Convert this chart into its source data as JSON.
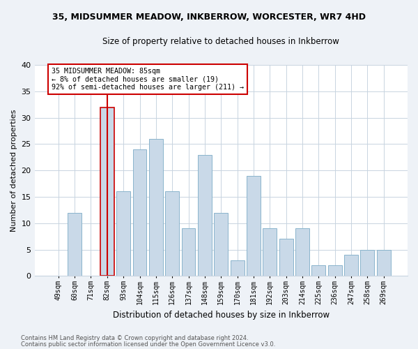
{
  "title1": "35, MIDSUMMER MEADOW, INKBERROW, WORCESTER, WR7 4HD",
  "title2": "Size of property relative to detached houses in Inkberrow",
  "xlabel": "Distribution of detached houses by size in Inkberrow",
  "ylabel": "Number of detached properties",
  "categories": [
    "49sqm",
    "60sqm",
    "71sqm",
    "82sqm",
    "93sqm",
    "104sqm",
    "115sqm",
    "126sqm",
    "137sqm",
    "148sqm",
    "159sqm",
    "170sqm",
    "181sqm",
    "192sqm",
    "203sqm",
    "214sqm",
    "225sqm",
    "236sqm",
    "247sqm",
    "258sqm",
    "269sqm"
  ],
  "values": [
    0,
    12,
    0,
    32,
    16,
    24,
    26,
    16,
    9,
    23,
    12,
    3,
    19,
    9,
    7,
    9,
    2,
    2,
    4,
    5,
    5
  ],
  "bar_color": "#c9d9e8",
  "bar_edge_color": "#8ab4cc",
  "highlight_bar_index": 3,
  "vline_color": "#cc0000",
  "annotation_text": "35 MIDSUMMER MEADOW: 85sqm\n← 8% of detached houses are smaller (19)\n92% of semi-detached houses are larger (211) →",
  "annotation_box_edge": "#cc0000",
  "ylim": [
    0,
    40
  ],
  "yticks": [
    0,
    5,
    10,
    15,
    20,
    25,
    30,
    35,
    40
  ],
  "footer1": "Contains HM Land Registry data © Crown copyright and database right 2024.",
  "footer2": "Contains public sector information licensed under the Open Government Licence v3.0.",
  "bg_color": "#eef2f7",
  "plot_bg_color": "#ffffff",
  "grid_color": "#c8d4e0"
}
